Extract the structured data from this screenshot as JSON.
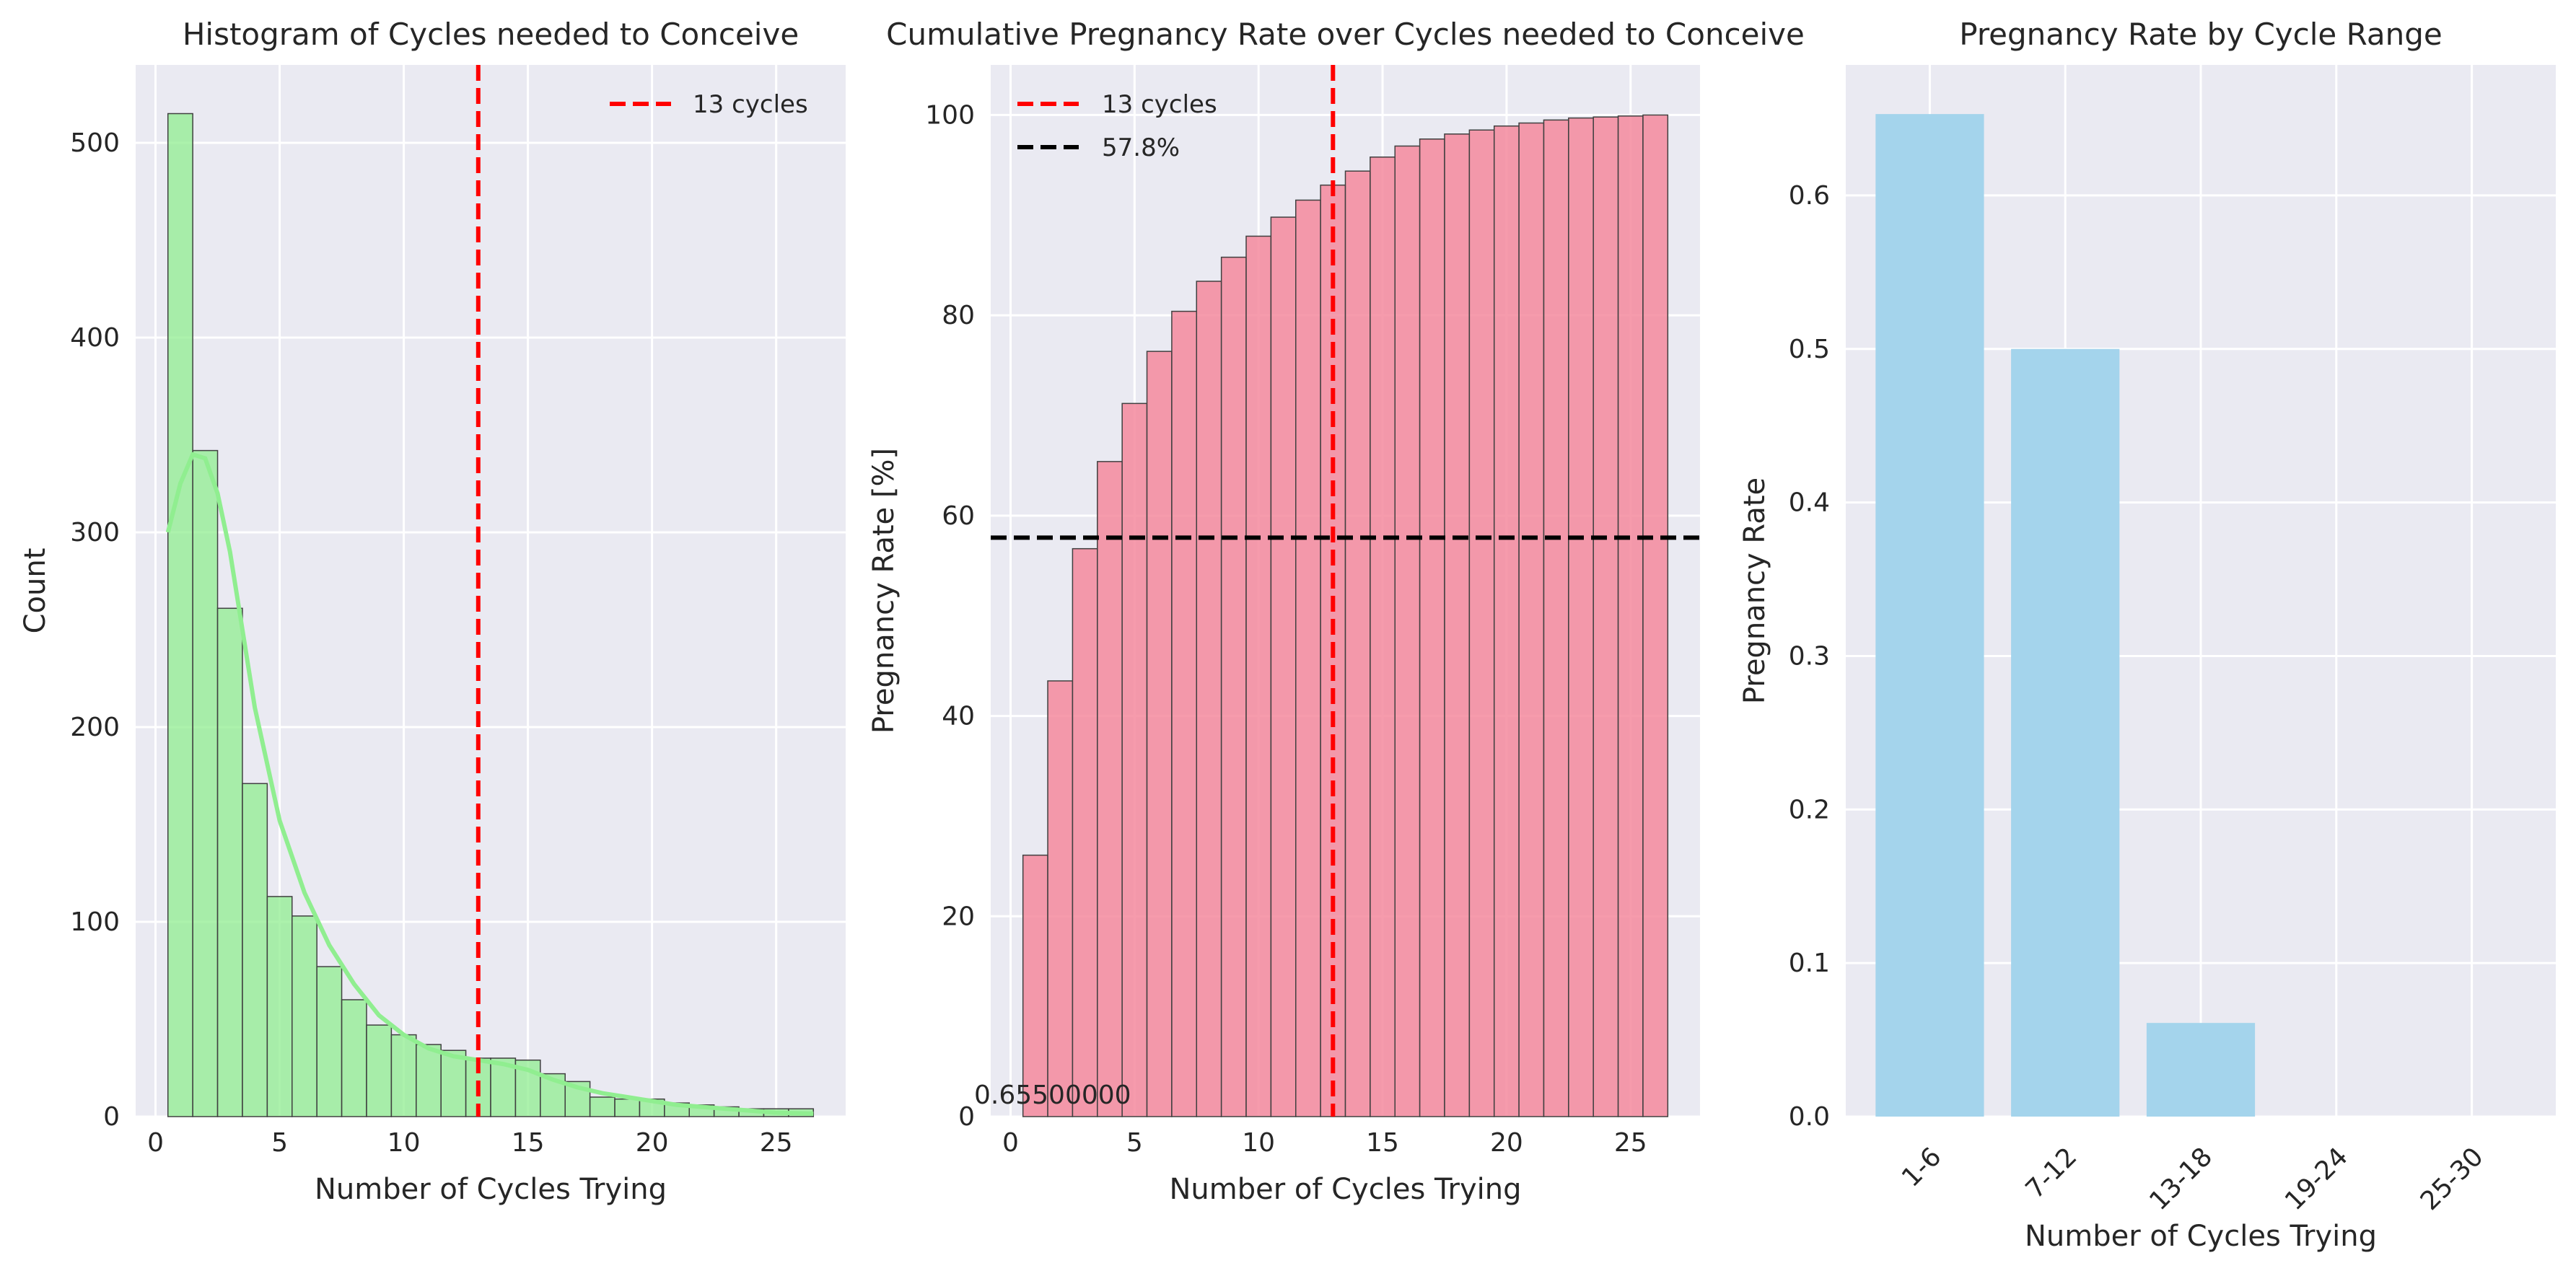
{
  "chart_data": [
    {
      "type": "bar",
      "title": "Histogram of Cycles needed to Conceive",
      "xlabel": "Number of Cycles Trying",
      "ylabel": "Count",
      "xlim": [
        -0.8,
        27.8
      ],
      "ylim": [
        0,
        540
      ],
      "xticks": [
        0,
        5,
        10,
        15,
        20,
        25
      ],
      "yticks": [
        0,
        100,
        200,
        300,
        400,
        500
      ],
      "bar_color": "#90EE90",
      "bins": {
        "x": [
          1,
          2,
          3,
          4,
          5,
          6,
          7,
          8,
          9,
          10,
          11,
          12,
          13,
          14,
          15,
          16,
          17,
          18,
          19,
          20,
          21,
          22,
          23,
          24,
          25,
          26
        ],
        "values": [
          515,
          342,
          261,
          171,
          113,
          103,
          77,
          60,
          47,
          42,
          37,
          34,
          30,
          30,
          29,
          22,
          18,
          10,
          9,
          9,
          7,
          6,
          5,
          4,
          4,
          4
        ]
      },
      "kde": {
        "color": "#90EE90",
        "x": [
          0.5,
          1,
          1.5,
          2,
          2.5,
          3,
          3.5,
          4,
          5,
          6,
          7,
          8,
          9,
          10,
          11,
          12,
          13,
          14,
          15,
          16,
          17,
          18,
          19,
          20,
          21,
          22,
          23,
          24,
          25,
          26.5
        ],
        "y": [
          300,
          325,
          340,
          338,
          320,
          290,
          250,
          210,
          152,
          115,
          88,
          68,
          52,
          42,
          35,
          31,
          29,
          27,
          24,
          19,
          15,
          12,
          10,
          8,
          6,
          5,
          4,
          3,
          2,
          1.5
        ]
      },
      "vline": {
        "x": 13,
        "color": "#FF0000",
        "label": "13 cycles"
      },
      "legend_position": "top-right",
      "grid": true
    },
    {
      "type": "bar",
      "title": "Cumulative Pregnancy Rate over Cycles needed to Conceive",
      "xlabel": "Number of Cycles Trying",
      "ylabel": "Pregnancy Rate [%]",
      "xlim": [
        -0.8,
        27.8
      ],
      "ylim": [
        0,
        105
      ],
      "xticks": [
        0,
        5,
        10,
        15,
        20,
        25
      ],
      "yticks": [
        0,
        20,
        40,
        60,
        80,
        100
      ],
      "bar_color": "#F4899E",
      "x": [
        1,
        2,
        3,
        4,
        5,
        6,
        7,
        8,
        9,
        10,
        11,
        12,
        13,
        14,
        15,
        16,
        17,
        18,
        19,
        20,
        21,
        22,
        23,
        24,
        25,
        26
      ],
      "values": [
        26.1,
        43.5,
        56.7,
        65.4,
        71.2,
        76.4,
        80.4,
        83.4,
        85.8,
        87.9,
        89.8,
        91.5,
        93.0,
        94.4,
        95.8,
        96.9,
        97.6,
        98.1,
        98.5,
        98.9,
        99.2,
        99.5,
        99.7,
        99.8,
        99.9,
        100.0
      ],
      "vline": {
        "x": 13,
        "color": "#FF0000",
        "label": "13 cycles"
      },
      "hline": {
        "y": 57.8,
        "color": "#000000",
        "label": "57.8%"
      },
      "annotation": "0.65500000",
      "legend_position": "top-left",
      "grid": true
    },
    {
      "type": "bar",
      "title": "Pregnancy Rate by Cycle Range",
      "xlabel": "Number of Cycles Trying",
      "ylabel": "Pregnancy Rate",
      "ylim": [
        0,
        0.685
      ],
      "yticks": [
        "0.0",
        "0.1",
        "0.2",
        "0.3",
        "0.4",
        "0.5",
        "0.6"
      ],
      "bar_color": "#A4D4EC",
      "categories": [
        "1-6",
        "7-12",
        "13-18",
        "19-24",
        "25-30"
      ],
      "values": [
        0.653,
        0.5,
        0.061,
        0,
        0
      ],
      "grid": true
    }
  ]
}
